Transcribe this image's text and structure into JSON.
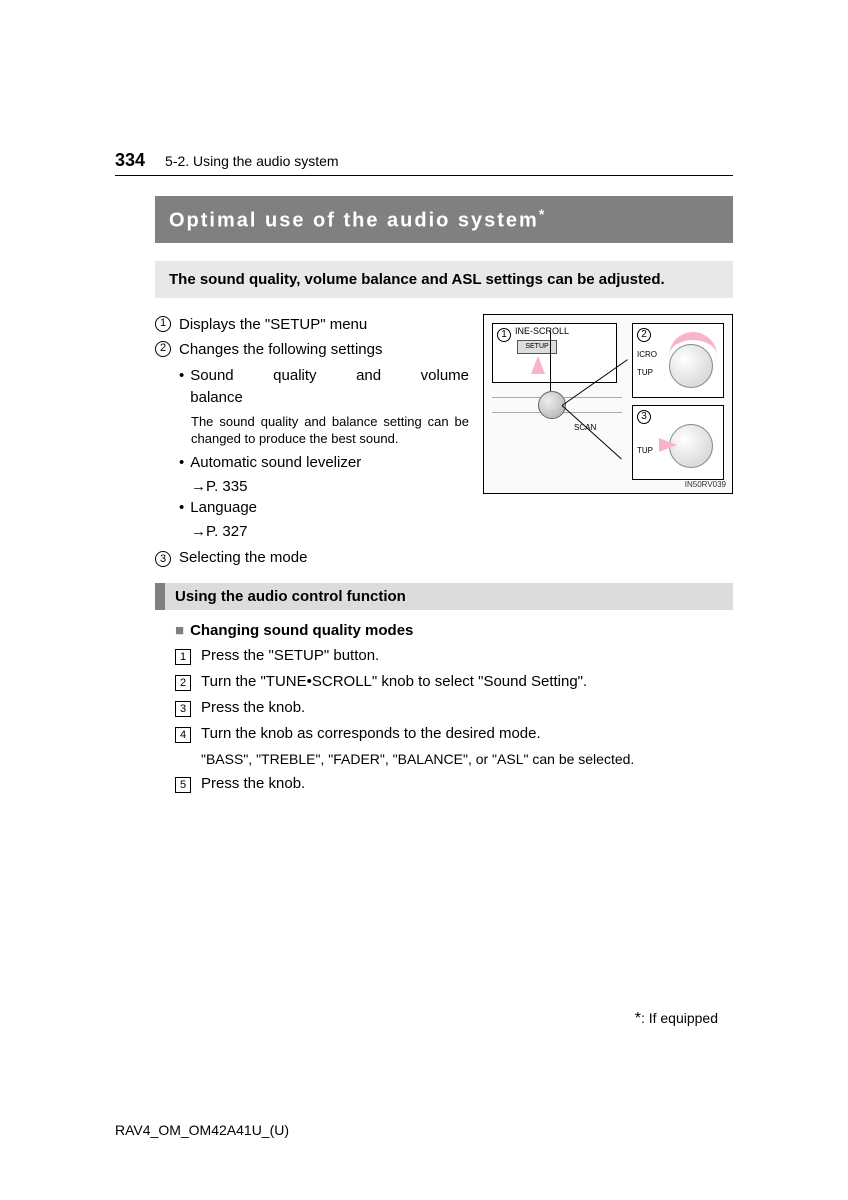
{
  "page_number": "334",
  "breadcrumb": "5-2. Using the audio system",
  "title": "Optimal use of the audio system",
  "title_asterisk": "*",
  "intro": "The sound quality, volume balance and ASL settings can be adjusted.",
  "items": {
    "one": "Displays the \"SETUP\" menu",
    "two": "Changes the following settings",
    "three": "Selecting the mode"
  },
  "bullets": {
    "b1a": "Sound quality and volume",
    "b1b": "balance",
    "note": "The sound quality and balance setting can be changed to produce the best sound.",
    "b2": "Automatic sound levelizer",
    "b2ref": "→P. 335",
    "b3": "Language",
    "b3ref": "→P. 327"
  },
  "diagram": {
    "c1_label": "INE-SCROLL",
    "c1_btn": "SETUP",
    "c2_l1": "ICRO",
    "c2_l2": "TUP",
    "c3_l": "TUP",
    "scan": "SCAN",
    "code": "IN50RV039"
  },
  "section": "Using the audio control function",
  "subheading": "Changing sound quality modes",
  "steps": {
    "s1": "Press the \"SETUP\" button.",
    "s2": "Turn the \"TUNE•SCROLL\" knob to select \"Sound Setting\".",
    "s3": "Press the knob.",
    "s4": "Turn the knob as corresponds to the desired mode.",
    "s4note": "\"BASS\", \"TREBLE\", \"FADER\", \"BALANCE\", or \"ASL\" can be selected.",
    "s5": "Press the knob."
  },
  "footnote": ": If equipped",
  "doc_code": "RAV4_OM_OM42A41U_(U)"
}
